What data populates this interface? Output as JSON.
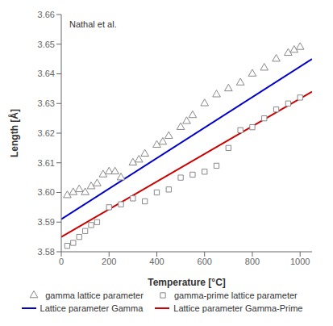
{
  "chart_data": {
    "type": "scatter",
    "title": "",
    "xlabel": "Temperature [°C]",
    "ylabel": "Length [Å]",
    "annotations": [
      "Nathal et al."
    ],
    "xlim": [
      0,
      1050
    ],
    "ylim": [
      3.58,
      3.66
    ],
    "xticks": [
      0,
      200,
      400,
      600,
      800,
      1000
    ],
    "yticks": [
      3.58,
      3.59,
      {
        "value": 3.6,
        "label": "3.60"
      },
      3.61,
      3.62,
      3.63,
      3.64,
      3.65,
      3.66
    ],
    "grid": false,
    "legend": "bottom",
    "series": [
      {
        "name": "gamma lattice parameter",
        "type": "scatter",
        "marker": "triangle",
        "color": "#888888",
        "x": [
          25,
          50,
          75,
          100,
          125,
          150,
          175,
          200,
          225,
          250,
          300,
          325,
          350,
          400,
          425,
          450,
          500,
          525,
          550,
          600,
          650,
          700,
          750,
          800,
          850,
          900,
          950,
          975,
          1000
        ],
        "values": [
          3.599,
          3.6,
          3.601,
          3.6,
          3.602,
          3.603,
          3.606,
          3.607,
          3.607,
          3.605,
          3.61,
          3.611,
          3.613,
          3.616,
          3.617,
          3.619,
          3.622,
          3.624,
          3.626,
          3.63,
          3.633,
          3.635,
          3.637,
          3.64,
          3.642,
          3.645,
          3.647,
          3.648,
          3.649
        ]
      },
      {
        "name": "gamma-prime lattice parameter",
        "type": "scatter",
        "marker": "square",
        "color": "#888888",
        "x": [
          25,
          50,
          75,
          100,
          125,
          150,
          200,
          250,
          300,
          350,
          400,
          450,
          500,
          550,
          600,
          650,
          700,
          750,
          800,
          850,
          900,
          950,
          1000
        ],
        "values": [
          3.582,
          3.583,
          3.585,
          3.587,
          3.589,
          3.59,
          3.595,
          3.596,
          3.598,
          3.597,
          3.6,
          3.601,
          3.605,
          3.606,
          3.607,
          3.609,
          3.615,
          3.621,
          3.622,
          3.625,
          3.628,
          3.63,
          3.632
        ]
      },
      {
        "name": "Lattice parameter Gamma",
        "type": "line",
        "line_style": "solid",
        "color": "#0000CC",
        "x": [
          0,
          1050
        ],
        "values": [
          3.591,
          3.645
        ]
      },
      {
        "name": "Lattice parameter Gamma-Prime",
        "type": "line",
        "line_style": "solid",
        "color": "#CC0000",
        "x": [
          0,
          1050
        ],
        "values": [
          3.585,
          3.634
        ]
      }
    ]
  }
}
